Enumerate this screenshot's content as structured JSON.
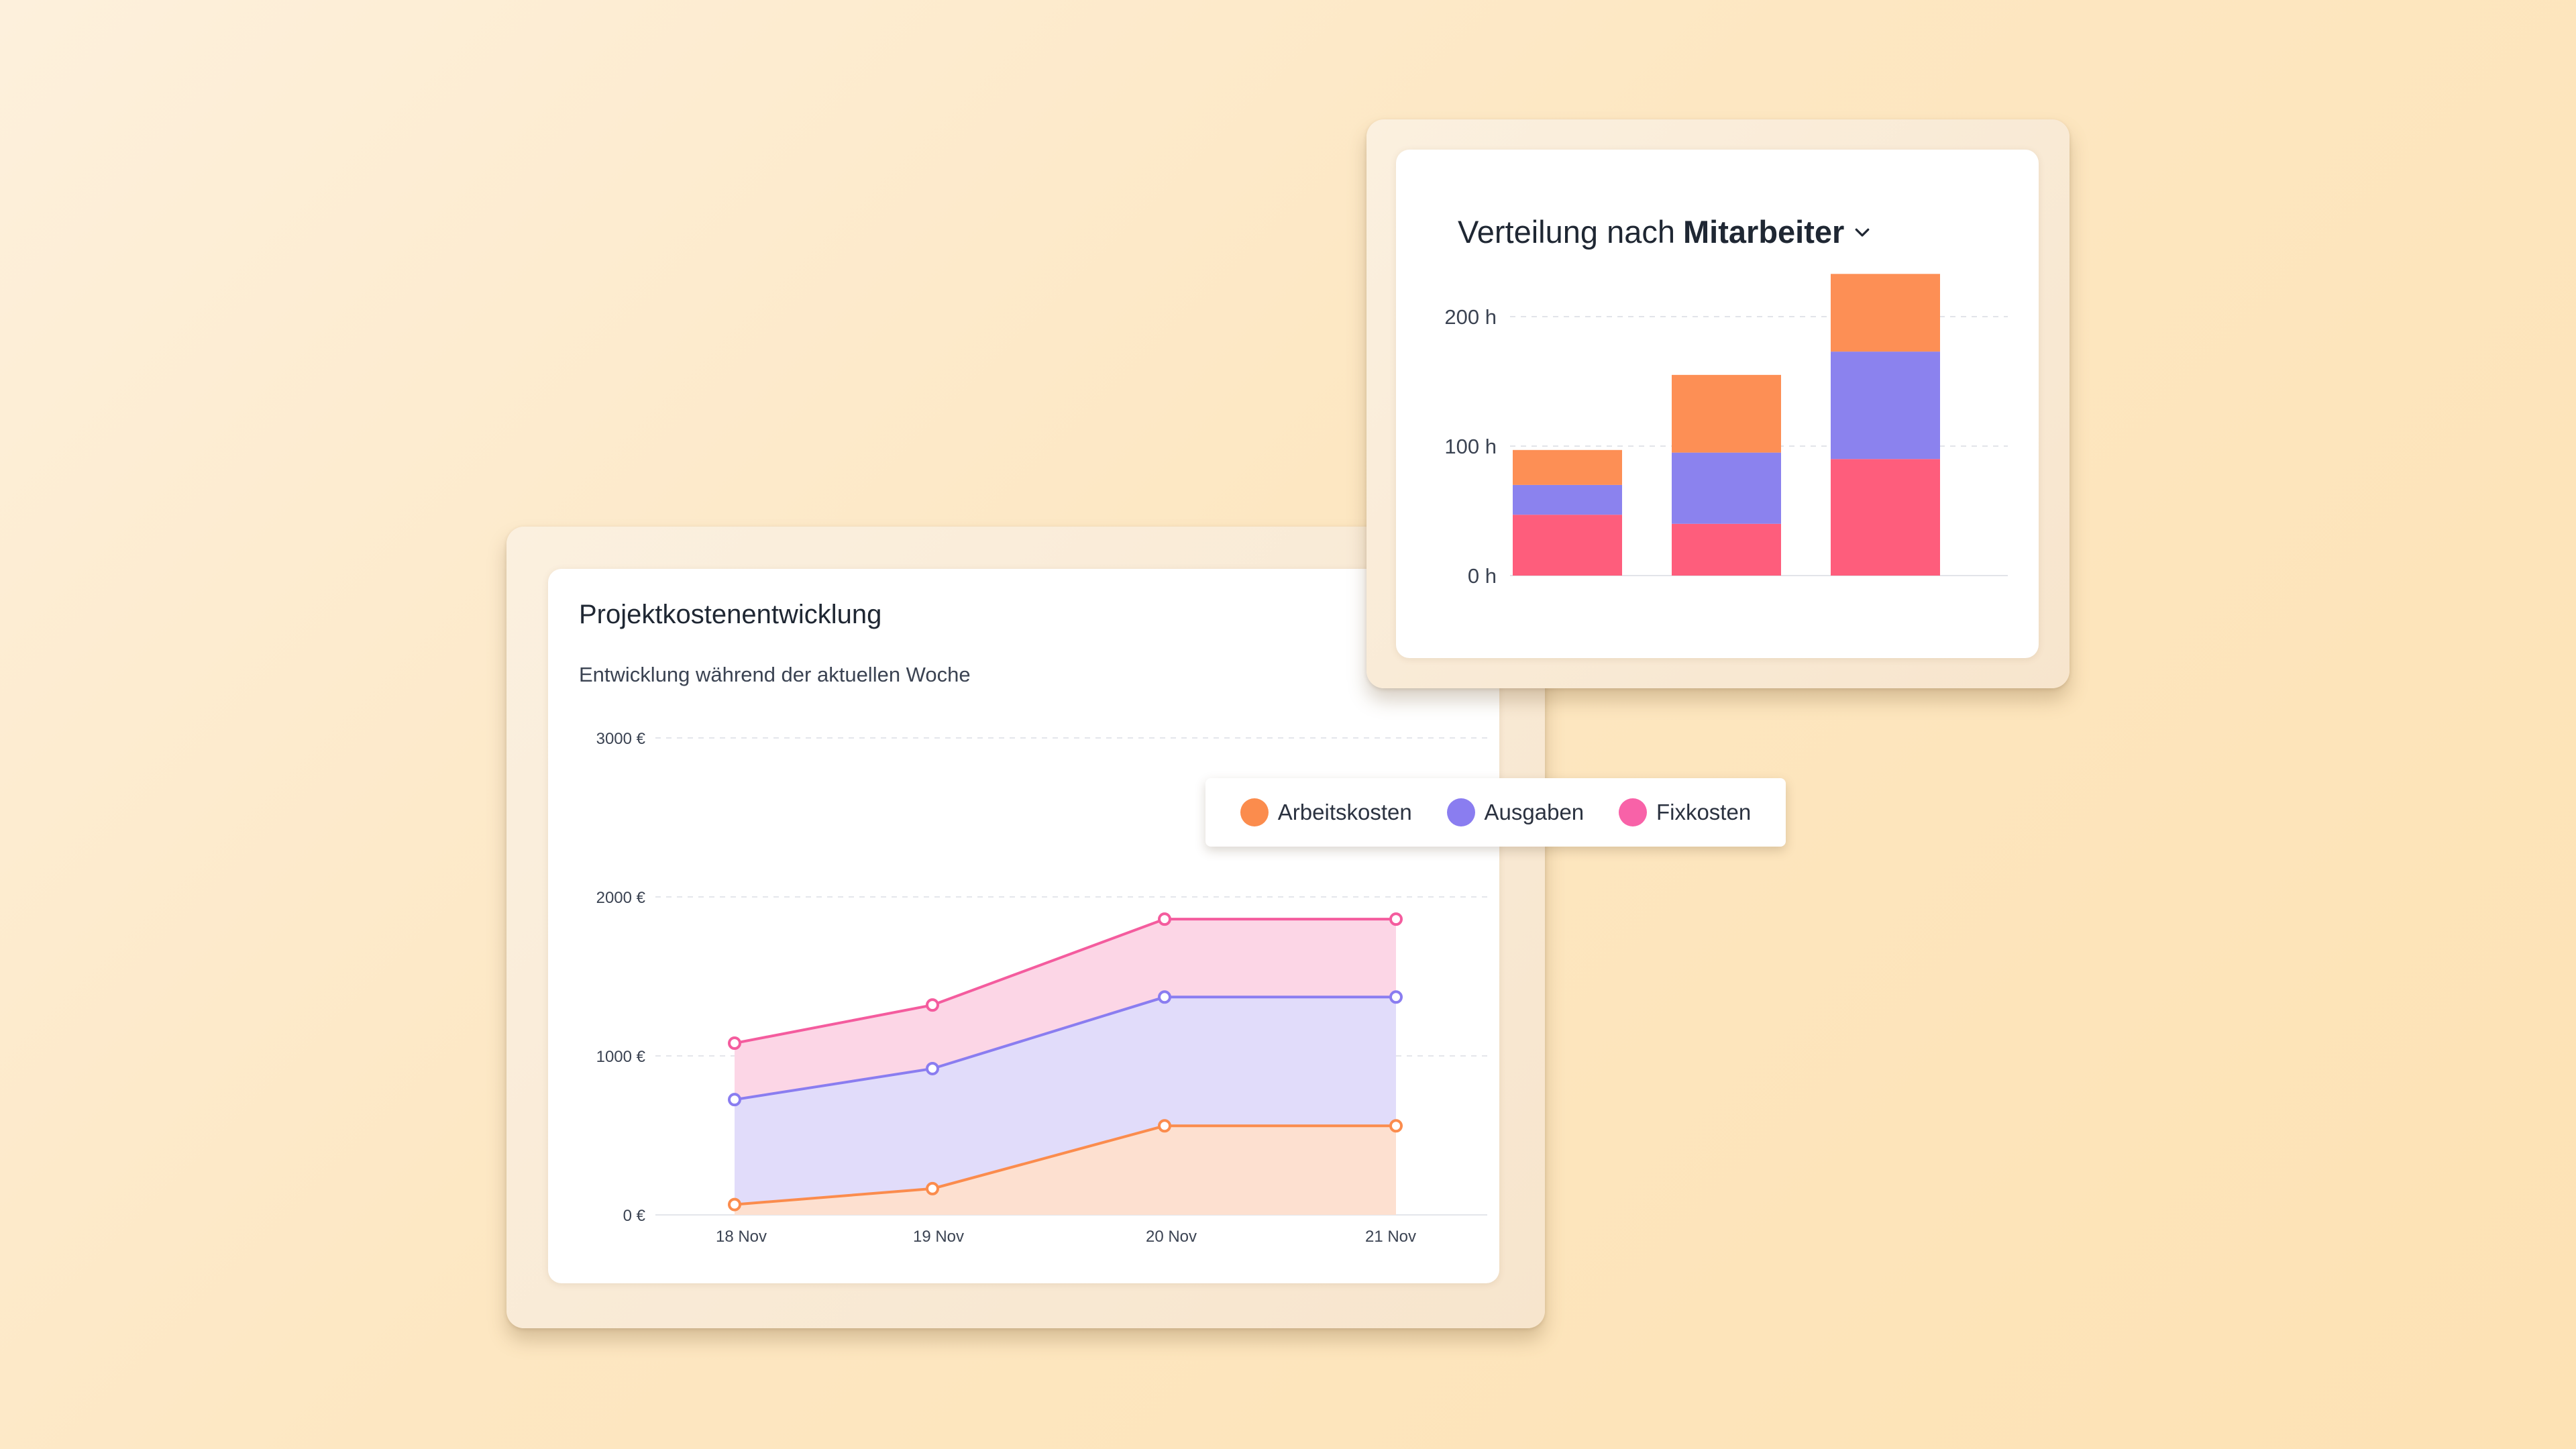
{
  "line_card": {
    "title": "Projektkostenentwicklung",
    "subtitle": "Entwicklung während der aktuellen Woche"
  },
  "bar_card": {
    "title_prefix": "Verteilung nach",
    "title_strong": "Mitarbeiter",
    "dropdown_icon": "chevron-down-icon"
  },
  "legend": {
    "items": [
      {
        "label": "Arbeitskosten",
        "color": "#fb8c4d"
      },
      {
        "label": "Ausgaben",
        "color": "#8a7df0"
      },
      {
        "label": "Fixkosten",
        "color": "#f862a8"
      }
    ]
  },
  "colors": {
    "arbeitskosten": "#fb8c4d",
    "ausgaben": "#8a7df0",
    "fixkosten": "#f45c9e",
    "bar_orange": "#fd8f55",
    "bar_purple": "#8b82ee",
    "bar_pink": "#fe5d7c"
  },
  "chart_data": [
    {
      "type": "area",
      "title": "Projektkostenentwicklung",
      "subtitle": "Entwicklung während der aktuellen Woche",
      "categories": [
        "18 Nov",
        "19 Nov",
        "20 Nov",
        "21 Nov"
      ],
      "ylim": [
        0,
        3000
      ],
      "yticks": [
        "0 €",
        "1000 €",
        "2000 €",
        "3000 €"
      ],
      "ytick_values": [
        0,
        1000,
        2000,
        3000
      ],
      "stacked": false,
      "grid": true,
      "series": [
        {
          "name": "Arbeitskosten",
          "values": [
            65,
            165,
            560,
            560
          ]
        },
        {
          "name": "Ausgaben",
          "values": [
            725,
            920,
            1370,
            1370
          ]
        },
        {
          "name": "Fixkosten",
          "values": [
            1080,
            1320,
            1860,
            1860
          ]
        }
      ]
    },
    {
      "type": "bar",
      "stacked": true,
      "title": "Verteilung nach Mitarbeiter",
      "categories": [
        "",
        "",
        ""
      ],
      "ylim": [
        0,
        230
      ],
      "yticks": [
        "0 h",
        "100 h",
        "200 h"
      ],
      "ytick_values": [
        0,
        100,
        200
      ],
      "grid": true,
      "series": [
        {
          "values": [
            47,
            40,
            90
          ]
        },
        {
          "values": [
            23,
            55,
            83
          ]
        },
        {
          "values": [
            27,
            60,
            60
          ]
        }
      ]
    }
  ]
}
